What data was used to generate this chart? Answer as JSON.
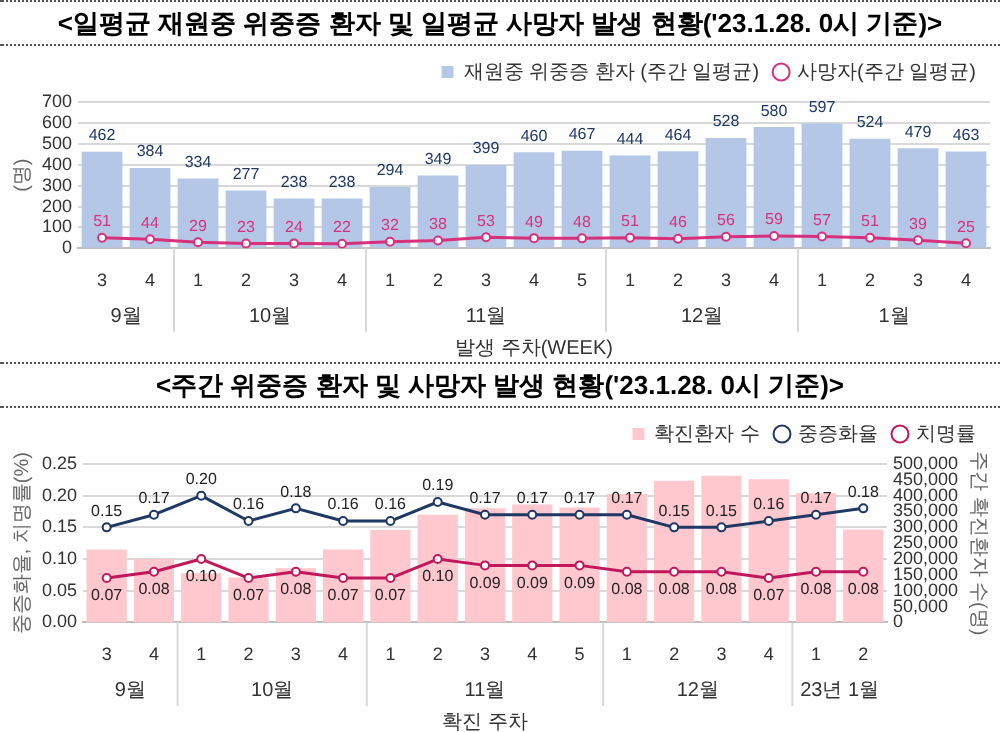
{
  "chart_data": [
    {
      "type": "bar",
      "title": "<일평균 재원중 위중증 환자 및 일평균 사망자 발생 현황('23.1.28. 0시 기준)>",
      "ylabel": "(명)",
      "xlabel": "발생 주차(WEEK)",
      "categories": [
        "3",
        "4",
        "1",
        "2",
        "3",
        "4",
        "1",
        "2",
        "3",
        "4",
        "5",
        "1",
        "2",
        "3",
        "4",
        "1",
        "2",
        "3",
        "4"
      ],
      "annotations": [
        "9월",
        "10월",
        "11월",
        "12월",
        "1월"
      ],
      "series": [
        {
          "name": "재원중 위중증 환자 (주간 일평균)",
          "color": "#b4c7e7",
          "values": [
            462,
            384,
            334,
            277,
            238,
            238,
            294,
            349,
            399,
            460,
            467,
            444,
            464,
            528,
            580,
            597,
            524,
            479,
            463
          ]
        },
        {
          "name": "사망자(주간 일평균)",
          "type": "line",
          "color": "#d9307c",
          "values": [
            51,
            44,
            29,
            23,
            24,
            22,
            32,
            38,
            53,
            49,
            48,
            51,
            46,
            56,
            59,
            57,
            51,
            39,
            25
          ]
        }
      ],
      "ylim": [
        0,
        700
      ],
      "yticks": [
        0,
        100,
        200,
        300,
        400,
        500,
        600,
        700
      ],
      "grid": "y",
      "legend": "top right",
      "marker": "circle",
      "data_labels": true
    },
    {
      "type": "bar",
      "title": "<주간 위중증 환자 및 사망자 발생 현황('23.1.28. 0시 기준)>",
      "ylabel": "중증화율, 치명률(%)",
      "y2label": "주간 확진환자 수(명)",
      "xlabel": "확진 주차",
      "categories": [
        "3",
        "4",
        "1",
        "2",
        "3",
        "4",
        "1",
        "2",
        "3",
        "4",
        "5",
        "1",
        "2",
        "3",
        "4",
        "1",
        "2"
      ],
      "annotations": [
        "9월",
        "10월",
        "11월",
        "12월",
        "23년 1월"
      ],
      "series": [
        {
          "name": "확진환자 수",
          "axis": "y2",
          "color": "#ffc7ce",
          "values": [
            230000,
            200000,
            155000,
            142000,
            171000,
            230000,
            292000,
            340000,
            360000,
            372000,
            363000,
            405000,
            447000,
            463000,
            452000,
            408000,
            293000
          ]
        },
        {
          "name": "중증화율",
          "type": "line",
          "color": "#1f3864",
          "values": [
            0.15,
            0.17,
            0.2,
            0.16,
            0.18,
            0.16,
            0.16,
            0.19,
            0.17,
            0.17,
            0.17,
            0.17,
            0.15,
            0.15,
            0.16,
            0.17,
            0.18
          ],
          "value_labels": [
            "0.15",
            "0.17",
            "0.20",
            "0.16",
            "0.18",
            "0.16",
            "0.16",
            "0.19",
            "0.17",
            "0.17",
            "0.17",
            "0.17",
            "0.15",
            "0.15",
            "0.16",
            "0.17",
            "0.18"
          ]
        },
        {
          "name": "치명률",
          "type": "line",
          "color": "#c0185a",
          "values": [
            0.07,
            0.08,
            0.1,
            0.07,
            0.08,
            0.07,
            0.07,
            0.1,
            0.09,
            0.09,
            0.09,
            0.08,
            0.08,
            0.08,
            0.07,
            0.08,
            0.08
          ],
          "value_labels": [
            "0.07",
            "0.08",
            "0.10",
            "0.07",
            "0.08",
            "0.07",
            "0.07",
            "0.10",
            "0.09",
            "0.09",
            "0.09",
            "0.08",
            "0.08",
            "0.08",
            "0.07",
            "0.08",
            "0.08"
          ]
        }
      ],
      "ylim": [
        0,
        0.25
      ],
      "yticks": [
        {
          "value": 0,
          "label": "0.00"
        },
        {
          "value": 0.05,
          "label": "0.05"
        },
        {
          "value": 0.1,
          "label": "0.10"
        },
        {
          "value": 0.15,
          "label": "0.15"
        },
        {
          "value": 0.2,
          "label": "0.20"
        },
        {
          "value": 0.25,
          "label": "0.25"
        }
      ],
      "y2lim": [
        0,
        500000
      ],
      "y2ticks": [
        {
          "value": 0,
          "label": "0"
        },
        {
          "value": 50000,
          "label": "50,000"
        },
        {
          "value": 100000,
          "label": "100,000"
        },
        {
          "value": 150000,
          "label": "150,000"
        },
        {
          "value": 200000,
          "label": "200,000"
        },
        {
          "value": 250000,
          "label": "250,000"
        },
        {
          "value": 300000,
          "label": "300,000"
        },
        {
          "value": 350000,
          "label": "350,000"
        },
        {
          "value": 400000,
          "label": "400,000"
        },
        {
          "value": 450000,
          "label": "450,000"
        },
        {
          "value": 500000,
          "label": "500,000"
        }
      ],
      "grid": "y",
      "legend": "top right",
      "marker": "circle"
    }
  ]
}
